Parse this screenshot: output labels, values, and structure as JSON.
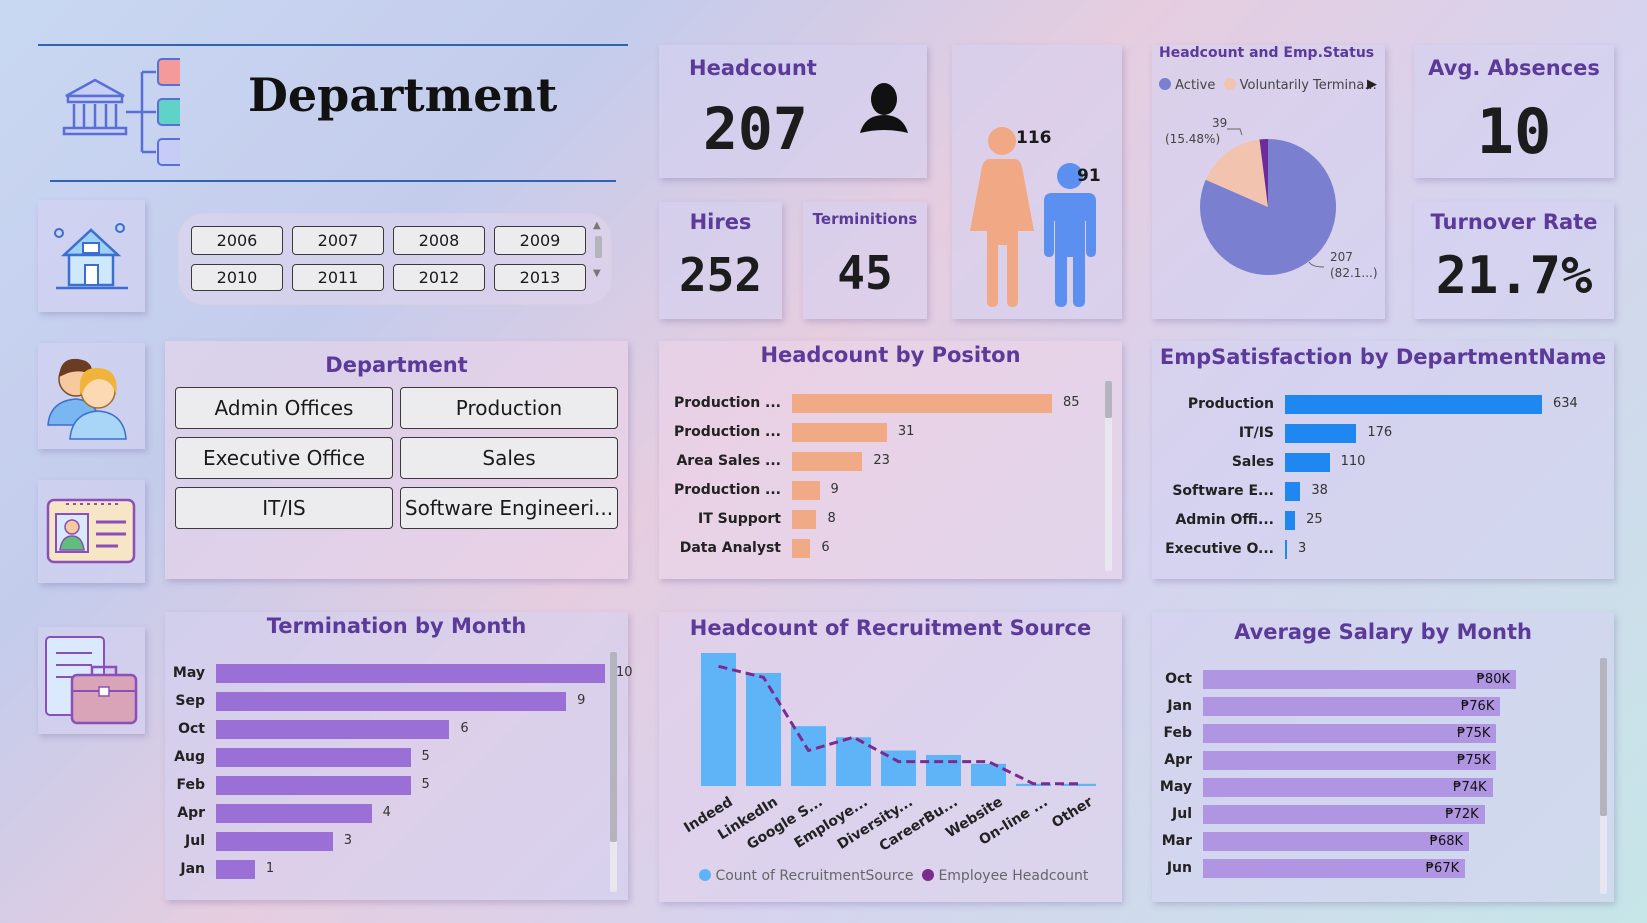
{
  "header": {
    "title": "Department"
  },
  "kpis": {
    "headcount": {
      "label": "Headcount",
      "value": "207"
    },
    "hires": {
      "label": "Hires",
      "value": "252"
    },
    "terminations": {
      "label": "Terminitions",
      "value": "45"
    },
    "avg_absences": {
      "label": "Avg. Absences",
      "value": "10"
    },
    "turnover": {
      "label": "Turnover Rate",
      "value": "21.7%"
    }
  },
  "gender": {
    "female": "116",
    "male": "91"
  },
  "status_pie": {
    "title": "Headcount and Emp.Status",
    "legend": [
      "Active",
      "Voluntarily Termina..."
    ],
    "label_small": "39",
    "label_small_pct": "(15.48%)",
    "label_big": "207",
    "label_big_pct": "(82.1...)",
    "colors": {
      "active": "#7a7fd0",
      "voluntary": "#f2c3ae",
      "other": "#6b2c9a"
    }
  },
  "year_slicer": {
    "years": [
      "2006",
      "2007",
      "2008",
      "2009",
      "2010",
      "2011",
      "2012",
      "2013"
    ]
  },
  "department_slicer": {
    "title": "Department",
    "items": [
      "Admin Offices",
      "Production",
      "Executive Office",
      "Sales",
      "IT/IS",
      "Software Engineeri..."
    ]
  },
  "position_chart": {
    "title": "Headcount by Positon",
    "labels": [
      "Production ...",
      "Production ...",
      "Area Sales ...",
      "Production ...",
      "IT Support",
      "Data Analyst"
    ],
    "values": [
      85,
      31,
      23,
      9,
      8,
      6
    ],
    "color": "#f0ab86"
  },
  "satisfaction_chart": {
    "title": "EmpSatisfaction by DepartmentName",
    "labels": [
      "Production",
      "IT/IS",
      "Sales",
      "Software E...",
      "Admin Offi...",
      "Executive O..."
    ],
    "values": [
      634,
      176,
      110,
      38,
      25,
      3
    ],
    "color": "#1e88f0"
  },
  "termination_chart": {
    "title": "Termination by Month",
    "labels": [
      "May",
      "Sep",
      "Oct",
      "Aug",
      "Feb",
      "Apr",
      "Jul",
      "Jan"
    ],
    "values": [
      10,
      9,
      6,
      5,
      5,
      4,
      3,
      1
    ],
    "color": "#9a6fd6"
  },
  "chart_data": [
    {
      "type": "bar",
      "title": "Headcount of Recruitment Source",
      "categories": [
        "Indeed",
        "LinkedIn",
        "Google S...",
        "Employe...",
        "Diversity...",
        "CareerBu...",
        "Website",
        "On-line ...",
        "Other"
      ],
      "series": [
        {
          "name": "Count of RecruitmentSource",
          "type": "bar",
          "values": [
            60,
            51,
            27,
            22,
            16,
            14,
            10,
            1,
            1
          ]
        },
        {
          "name": "Employee Headcount",
          "type": "line",
          "values": [
            54,
            49,
            16,
            22,
            11,
            11,
            11,
            1,
            1
          ]
        }
      ],
      "colors": [
        "#5fb4f8",
        "#7b2b8e"
      ]
    },
    {
      "type": "bar",
      "title": "Average Salary by Month",
      "categories": [
        "Oct",
        "Jan",
        "Feb",
        "Apr",
        "May",
        "Jul",
        "Mar",
        "Jun"
      ],
      "values": [
        80,
        76,
        75,
        75,
        74,
        72,
        68,
        67
      ],
      "value_labels": [
        "₱80K",
        "₱76K",
        "₱75K",
        "₱75K",
        "₱74K",
        "₱72K",
        "₱68K",
        "₱67K"
      ],
      "color": "#b095e2"
    }
  ]
}
